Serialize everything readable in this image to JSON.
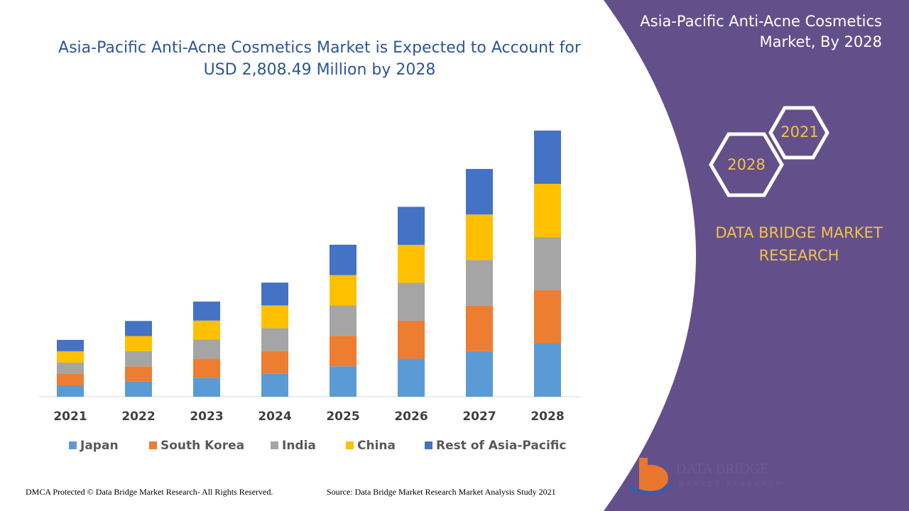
{
  "chart_data": {
    "type": "bar",
    "stacked": true,
    "title": "Asia-Pacific Anti-Acne Cosmetics Market is Expected to Account for USD 2,808.49 Million by 2028",
    "categories": [
      "2021",
      "2022",
      "2023",
      "2024",
      "2025",
      "2026",
      "2027",
      "2028"
    ],
    "series": [
      {
        "name": "Japan",
        "color": "#5b9bd5",
        "values": [
          120,
          160,
          201,
          241,
          321,
          401,
          481,
          562
        ]
      },
      {
        "name": "South Korea",
        "color": "#ed7d31",
        "values": [
          120,
          160,
          201,
          241,
          321,
          401,
          481,
          562
        ]
      },
      {
        "name": "India",
        "color": "#a5a5a5",
        "values": [
          120,
          160,
          201,
          241,
          321,
          401,
          481,
          562
        ]
      },
      {
        "name": "China",
        "color": "#ffc000",
        "values": [
          120,
          160,
          201,
          241,
          321,
          401,
          481,
          562
        ]
      },
      {
        "name": "Rest of Asia-Pacific",
        "color": "#4472c4",
        "values": [
          120,
          160,
          201,
          241,
          321,
          401,
          481,
          562
        ]
      }
    ]
  },
  "panel": {
    "title": "Asia-Pacific Anti-Acne Cosmetics Market, By 2028",
    "hexagons": [
      "2021",
      "2028"
    ],
    "brand": "DATA BRIDGE MARKET RESEARCH"
  },
  "logo": {
    "name": "DATA BRIDGE",
    "tagline": "MARKET RESEARCH"
  },
  "footer": {
    "copyright": "DMCA Protected © Data Bridge Market Research- All Rights Reserved.",
    "source": "Source: Data Bridge Market Research Market Analysis Study 2021"
  }
}
